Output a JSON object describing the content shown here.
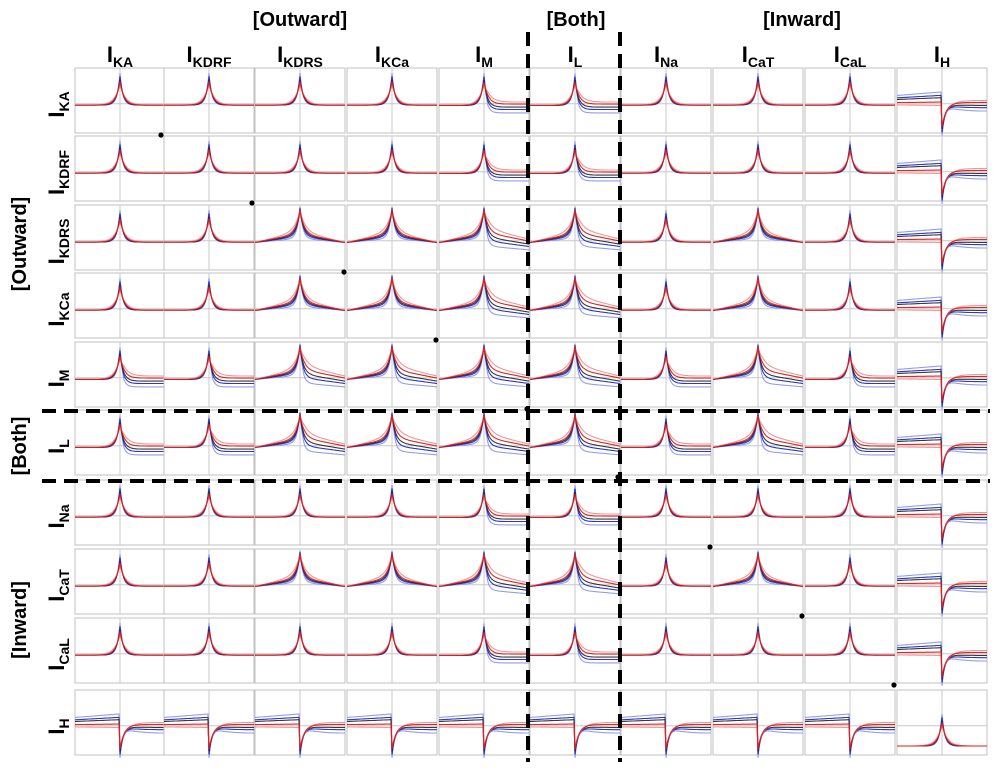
{
  "figure": {
    "col_groups": [
      {
        "id": "outward",
        "label": "[Outward]"
      },
      {
        "id": "both",
        "label": "[Both]"
      },
      {
        "id": "inward",
        "label": "[Inward]"
      }
    ],
    "row_groups": [
      {
        "id": "outward",
        "label": "[Outward]"
      },
      {
        "id": "both",
        "label": "[Both]"
      },
      {
        "id": "inward",
        "label": "[Inward]"
      }
    ],
    "currents": [
      {
        "id": "ka",
        "main": "I",
        "sub": "KA"
      },
      {
        "id": "kdrf",
        "main": "I",
        "sub": "KDRF"
      },
      {
        "id": "kdrs",
        "main": "I",
        "sub": "KDRS"
      },
      {
        "id": "kca",
        "main": "I",
        "sub": "KCa"
      },
      {
        "id": "m",
        "main": "I",
        "sub": "M"
      },
      {
        "id": "l",
        "main": "I",
        "sub": "L"
      },
      {
        "id": "na",
        "main": "I",
        "sub": "Na"
      },
      {
        "id": "cat",
        "main": "I",
        "sub": "CaT"
      },
      {
        "id": "cal",
        "main": "I",
        "sub": "CaL"
      },
      {
        "id": "h",
        "main": "I",
        "sub": "H"
      }
    ],
    "colors": {
      "blue_series": "#1f2bd0",
      "light_blue_series": "#8a93e8",
      "red_series": "#e01818",
      "light_red_series": "#f08a8a",
      "dark_series": "#222222",
      "divider": "#000000",
      "gridline": "#c8c8c8",
      "panel_border": "#c0c0c0"
    }
  },
  "chart_data": {
    "type": "line",
    "layout": "10x10 small-multiples grid (row current x column current)",
    "grid": true,
    "x_axis": {
      "ticks": [],
      "center_gridline": true
    },
    "y_axis": {
      "ticks": [],
      "center_gridline": true
    },
    "dividers": [
      "after column IM",
      "after column IL",
      "after row IM",
      "after row IL"
    ],
    "diagonal_markers": true,
    "panel_profile_types": {
      "spike": "sharp symmetric peak at center",
      "broad": "rounded peak with longer tails",
      "step": "peak followed by shifted post-peak level",
      "dip": "inverted shape with trough after center (IH row and column)",
      "cusp": "IH x IH: curves converging to a point at center"
    }
  }
}
